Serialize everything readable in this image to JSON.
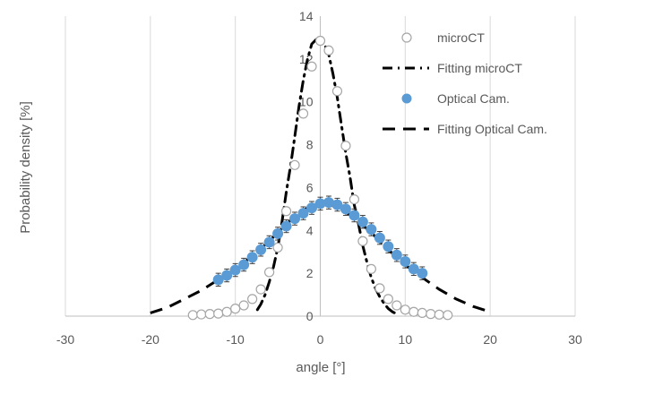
{
  "chart_data": {
    "type": "scatter",
    "title": "",
    "xlabel": "angle [°]",
    "ylabel": "Probability density [%]",
    "xlim": [
      -30,
      30
    ],
    "ylim": [
      0,
      14
    ],
    "x_ticks": [
      -30,
      -20,
      -10,
      0,
      10,
      20,
      30
    ],
    "y_ticks": [
      0,
      2,
      4,
      6,
      8,
      10,
      12,
      14
    ],
    "grid": "vertical",
    "legend_position": "top-right",
    "series": [
      {
        "name": "microCT",
        "kind": "markers",
        "marker": "open-circle",
        "color": "#a6a6a6",
        "x": [
          -15,
          -14,
          -13,
          -12,
          -11,
          -10,
          -9,
          -8,
          -7,
          -6,
          -5,
          -4,
          -3,
          -2,
          -1,
          0,
          1,
          2,
          3,
          4,
          5,
          6,
          7,
          8,
          9,
          10,
          11,
          12,
          13,
          14,
          15
        ],
        "y": [
          0.05,
          0.08,
          0.1,
          0.12,
          0.2,
          0.35,
          0.5,
          0.8,
          1.25,
          2.05,
          3.2,
          4.9,
          7.05,
          9.45,
          11.65,
          12.85,
          12.4,
          10.5,
          7.95,
          5.45,
          3.5,
          2.2,
          1.3,
          0.8,
          0.5,
          0.3,
          0.2,
          0.15,
          0.1,
          0.07,
          0.05
        ]
      },
      {
        "name": "Fitting microCT",
        "kind": "line",
        "line_style": "dash-dot",
        "color": "#000000",
        "x": [
          -7.4,
          -7,
          -6.5,
          -6,
          -5.5,
          -5,
          -4.5,
          -4,
          -3.5,
          -3,
          -2.5,
          -2,
          -1.5,
          -1,
          -0.5,
          0,
          0.5,
          1,
          1.5,
          2,
          2.5,
          3,
          3.5,
          4,
          4.5,
          5,
          5.5,
          6,
          6.5,
          7,
          7.5,
          8,
          8.5,
          9
        ],
        "y": [
          0.3,
          0.55,
          1.0,
          1.6,
          2.3,
          3.2,
          4.4,
          5.8,
          7.0,
          8.4,
          9.8,
          11.0,
          12.0,
          12.7,
          12.9,
          12.85,
          12.7,
          12.2,
          11.3,
          10.2,
          8.9,
          7.6,
          6.5,
          5.2,
          4.3,
          3.3,
          2.5,
          1.8,
          1.3,
          0.9,
          0.6,
          0.35,
          0.2,
          0.1
        ]
      },
      {
        "name": "Optical Cam.",
        "kind": "markers",
        "marker": "filled-circle",
        "color": "#5b9bd5",
        "error_bar": 0.3,
        "x": [
          -12,
          -11,
          -10,
          -9,
          -8,
          -7,
          -6,
          -5,
          -4,
          -3,
          -2,
          -1,
          0,
          1,
          2,
          3,
          4,
          5,
          6,
          7,
          8,
          9,
          10,
          11,
          12
        ],
        "y": [
          1.7,
          1.9,
          2.15,
          2.4,
          2.75,
          3.1,
          3.45,
          3.85,
          4.2,
          4.55,
          4.8,
          5.05,
          5.25,
          5.3,
          5.2,
          5.0,
          4.7,
          4.4,
          4.05,
          3.65,
          3.25,
          2.85,
          2.55,
          2.2,
          2.0
        ]
      },
      {
        "name": "Fitting Optical Cam.",
        "kind": "line",
        "line_style": "dash",
        "color": "#000000",
        "x": [
          -20,
          -18,
          -16,
          -14,
          -12,
          -10,
          -8,
          -6,
          -4,
          -2,
          0,
          2,
          4,
          6,
          8,
          10,
          12,
          14,
          16,
          18,
          20
        ],
        "y": [
          0.15,
          0.4,
          0.8,
          1.2,
          1.7,
          2.2,
          2.8,
          3.5,
          4.3,
          4.95,
          5.3,
          5.1,
          4.6,
          3.9,
          3.1,
          2.4,
          1.8,
          1.25,
          0.8,
          0.45,
          0.2
        ]
      }
    ]
  }
}
